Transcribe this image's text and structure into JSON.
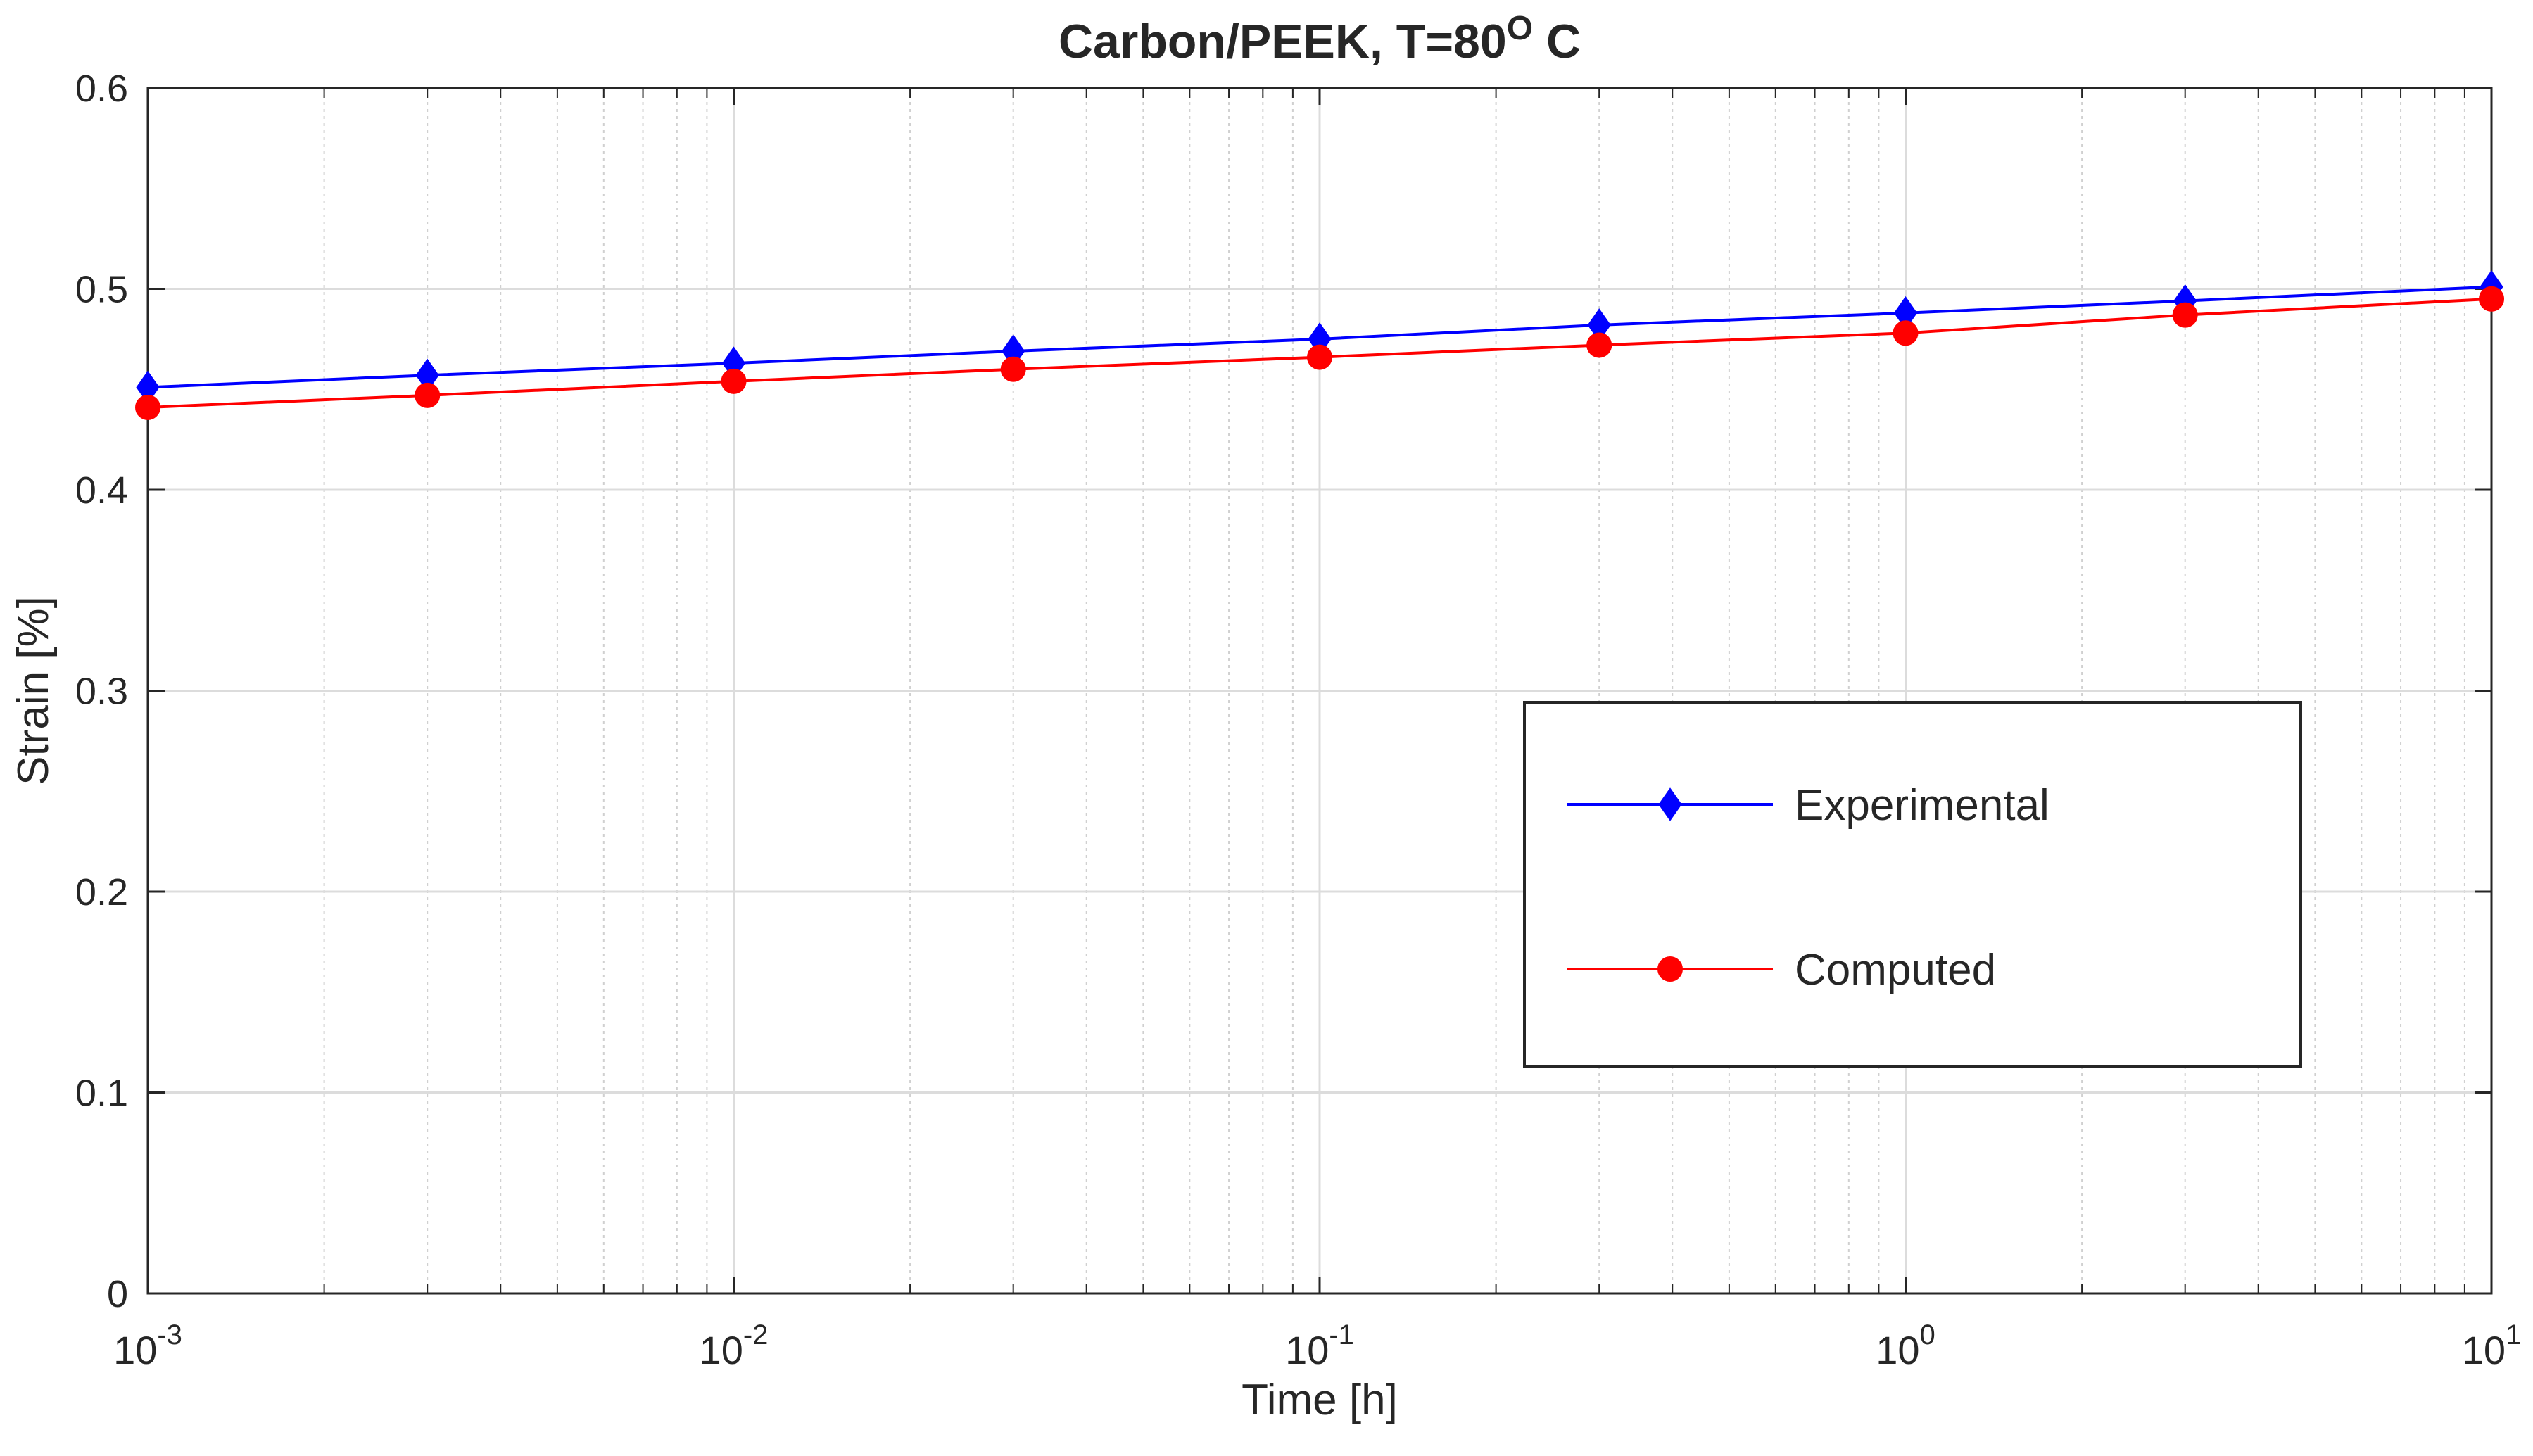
{
  "chart_data": {
    "type": "line",
    "title": "Carbon/PEEK, T=80",
    "title_superscript": "O",
    "title_suffix": " C",
    "xlabel": "Time [h]",
    "ylabel": "Strain [%]",
    "xscale": "log",
    "xlim": [
      0.001,
      10
    ],
    "ylim": [
      0,
      0.6
    ],
    "x_ticks": [
      {
        "value": 0.001,
        "base": "10",
        "exp": "-3"
      },
      {
        "value": 0.01,
        "base": "10",
        "exp": "-2"
      },
      {
        "value": 0.1,
        "base": "10",
        "exp": "-1"
      },
      {
        "value": 1,
        "base": "10",
        "exp": "0"
      },
      {
        "value": 10,
        "base": "10",
        "exp": "1"
      }
    ],
    "y_ticks": [
      0,
      0.1,
      0.2,
      0.3,
      0.4,
      0.5,
      0.6
    ],
    "y_tick_labels": [
      "0",
      "0.1",
      "0.2",
      "0.3",
      "0.4",
      "0.5",
      "0.6"
    ],
    "grid": true,
    "minor_grid": true,
    "legend_position": "center-right",
    "x": [
      0.001,
      0.003,
      0.01,
      0.03,
      0.1,
      0.3,
      1,
      3,
      10
    ],
    "series": [
      {
        "name": "Experimental",
        "color": "#0000ff",
        "marker": "diamond",
        "values": [
          0.451,
          0.457,
          0.463,
          0.469,
          0.475,
          0.482,
          0.488,
          0.494,
          0.501
        ]
      },
      {
        "name": "Computed",
        "color": "#ff0000",
        "marker": "circle",
        "values": [
          0.441,
          0.447,
          0.454,
          0.46,
          0.466,
          0.472,
          0.478,
          0.487,
          0.495
        ]
      }
    ]
  }
}
